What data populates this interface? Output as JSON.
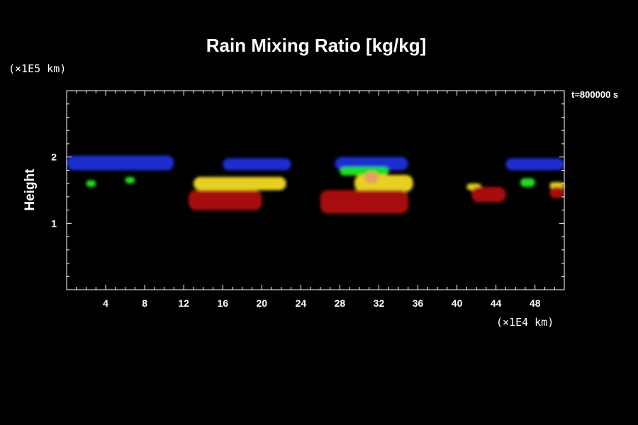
{
  "chart_data": {
    "type": "heatmap",
    "title": "Rain Mixing Ratio [kg/kg]",
    "xlabel": "",
    "ylabel": "Height",
    "x_unit_label": "(×1E4 km)",
    "y_unit_label": "(×1E5 km)",
    "time_label": "t=800000 s",
    "xlim": [
      0,
      51
    ],
    "ylim": [
      0,
      3
    ],
    "x_ticks": [
      4,
      8,
      12,
      16,
      20,
      24,
      28,
      32,
      36,
      40,
      44,
      48
    ],
    "y_ticks": [
      1,
      2
    ],
    "colors": {
      "background": "#000000",
      "axes": "#ffffff",
      "low": "#1a2fd0",
      "mid_low": "#22dd22",
      "mid_high": "#e8d020",
      "high": "#a81010",
      "peak": "#e8a060"
    },
    "regions": [
      {
        "level": "low",
        "x": [
          0,
          11
        ],
        "y": [
          1.8,
          2.02
        ]
      },
      {
        "level": "low",
        "x": [
          16,
          23
        ],
        "y": [
          1.8,
          1.98
        ]
      },
      {
        "level": "low",
        "x": [
          27.5,
          35
        ],
        "y": [
          1.8,
          2.0
        ]
      },
      {
        "level": "low",
        "x": [
          45,
          51
        ],
        "y": [
          1.8,
          1.98
        ]
      },
      {
        "level": "mid_low",
        "x": [
          2,
          3
        ],
        "y": [
          1.55,
          1.65
        ]
      },
      {
        "level": "mid_low",
        "x": [
          6,
          7
        ],
        "y": [
          1.6,
          1.7
        ]
      },
      {
        "level": "mid_low",
        "x": [
          28,
          33
        ],
        "y": [
          1.72,
          1.85
        ]
      },
      {
        "level": "mid_low",
        "x": [
          46.5,
          48
        ],
        "y": [
          1.55,
          1.68
        ]
      },
      {
        "level": "mid_high",
        "x": [
          13,
          22.5
        ],
        "y": [
          1.5,
          1.7
        ]
      },
      {
        "level": "mid_high",
        "x": [
          29.5,
          35.5
        ],
        "y": [
          1.48,
          1.73
        ]
      },
      {
        "level": "mid_high",
        "x": [
          41,
          42.5
        ],
        "y": [
          1.5,
          1.6
        ]
      },
      {
        "level": "mid_high",
        "x": [
          49.5,
          51
        ],
        "y": [
          1.52,
          1.62
        ]
      },
      {
        "level": "high",
        "x": [
          12.5,
          20
        ],
        "y": [
          1.2,
          1.5
        ]
      },
      {
        "level": "high",
        "x": [
          26,
          35
        ],
        "y": [
          1.15,
          1.5
        ]
      },
      {
        "level": "high",
        "x": [
          41.5,
          45
        ],
        "y": [
          1.32,
          1.55
        ]
      },
      {
        "level": "high",
        "x": [
          49.5,
          51
        ],
        "y": [
          1.38,
          1.55
        ]
      },
      {
        "level": "peak",
        "x": [
          30.5,
          32
        ],
        "y": [
          1.6,
          1.78
        ]
      }
    ]
  }
}
